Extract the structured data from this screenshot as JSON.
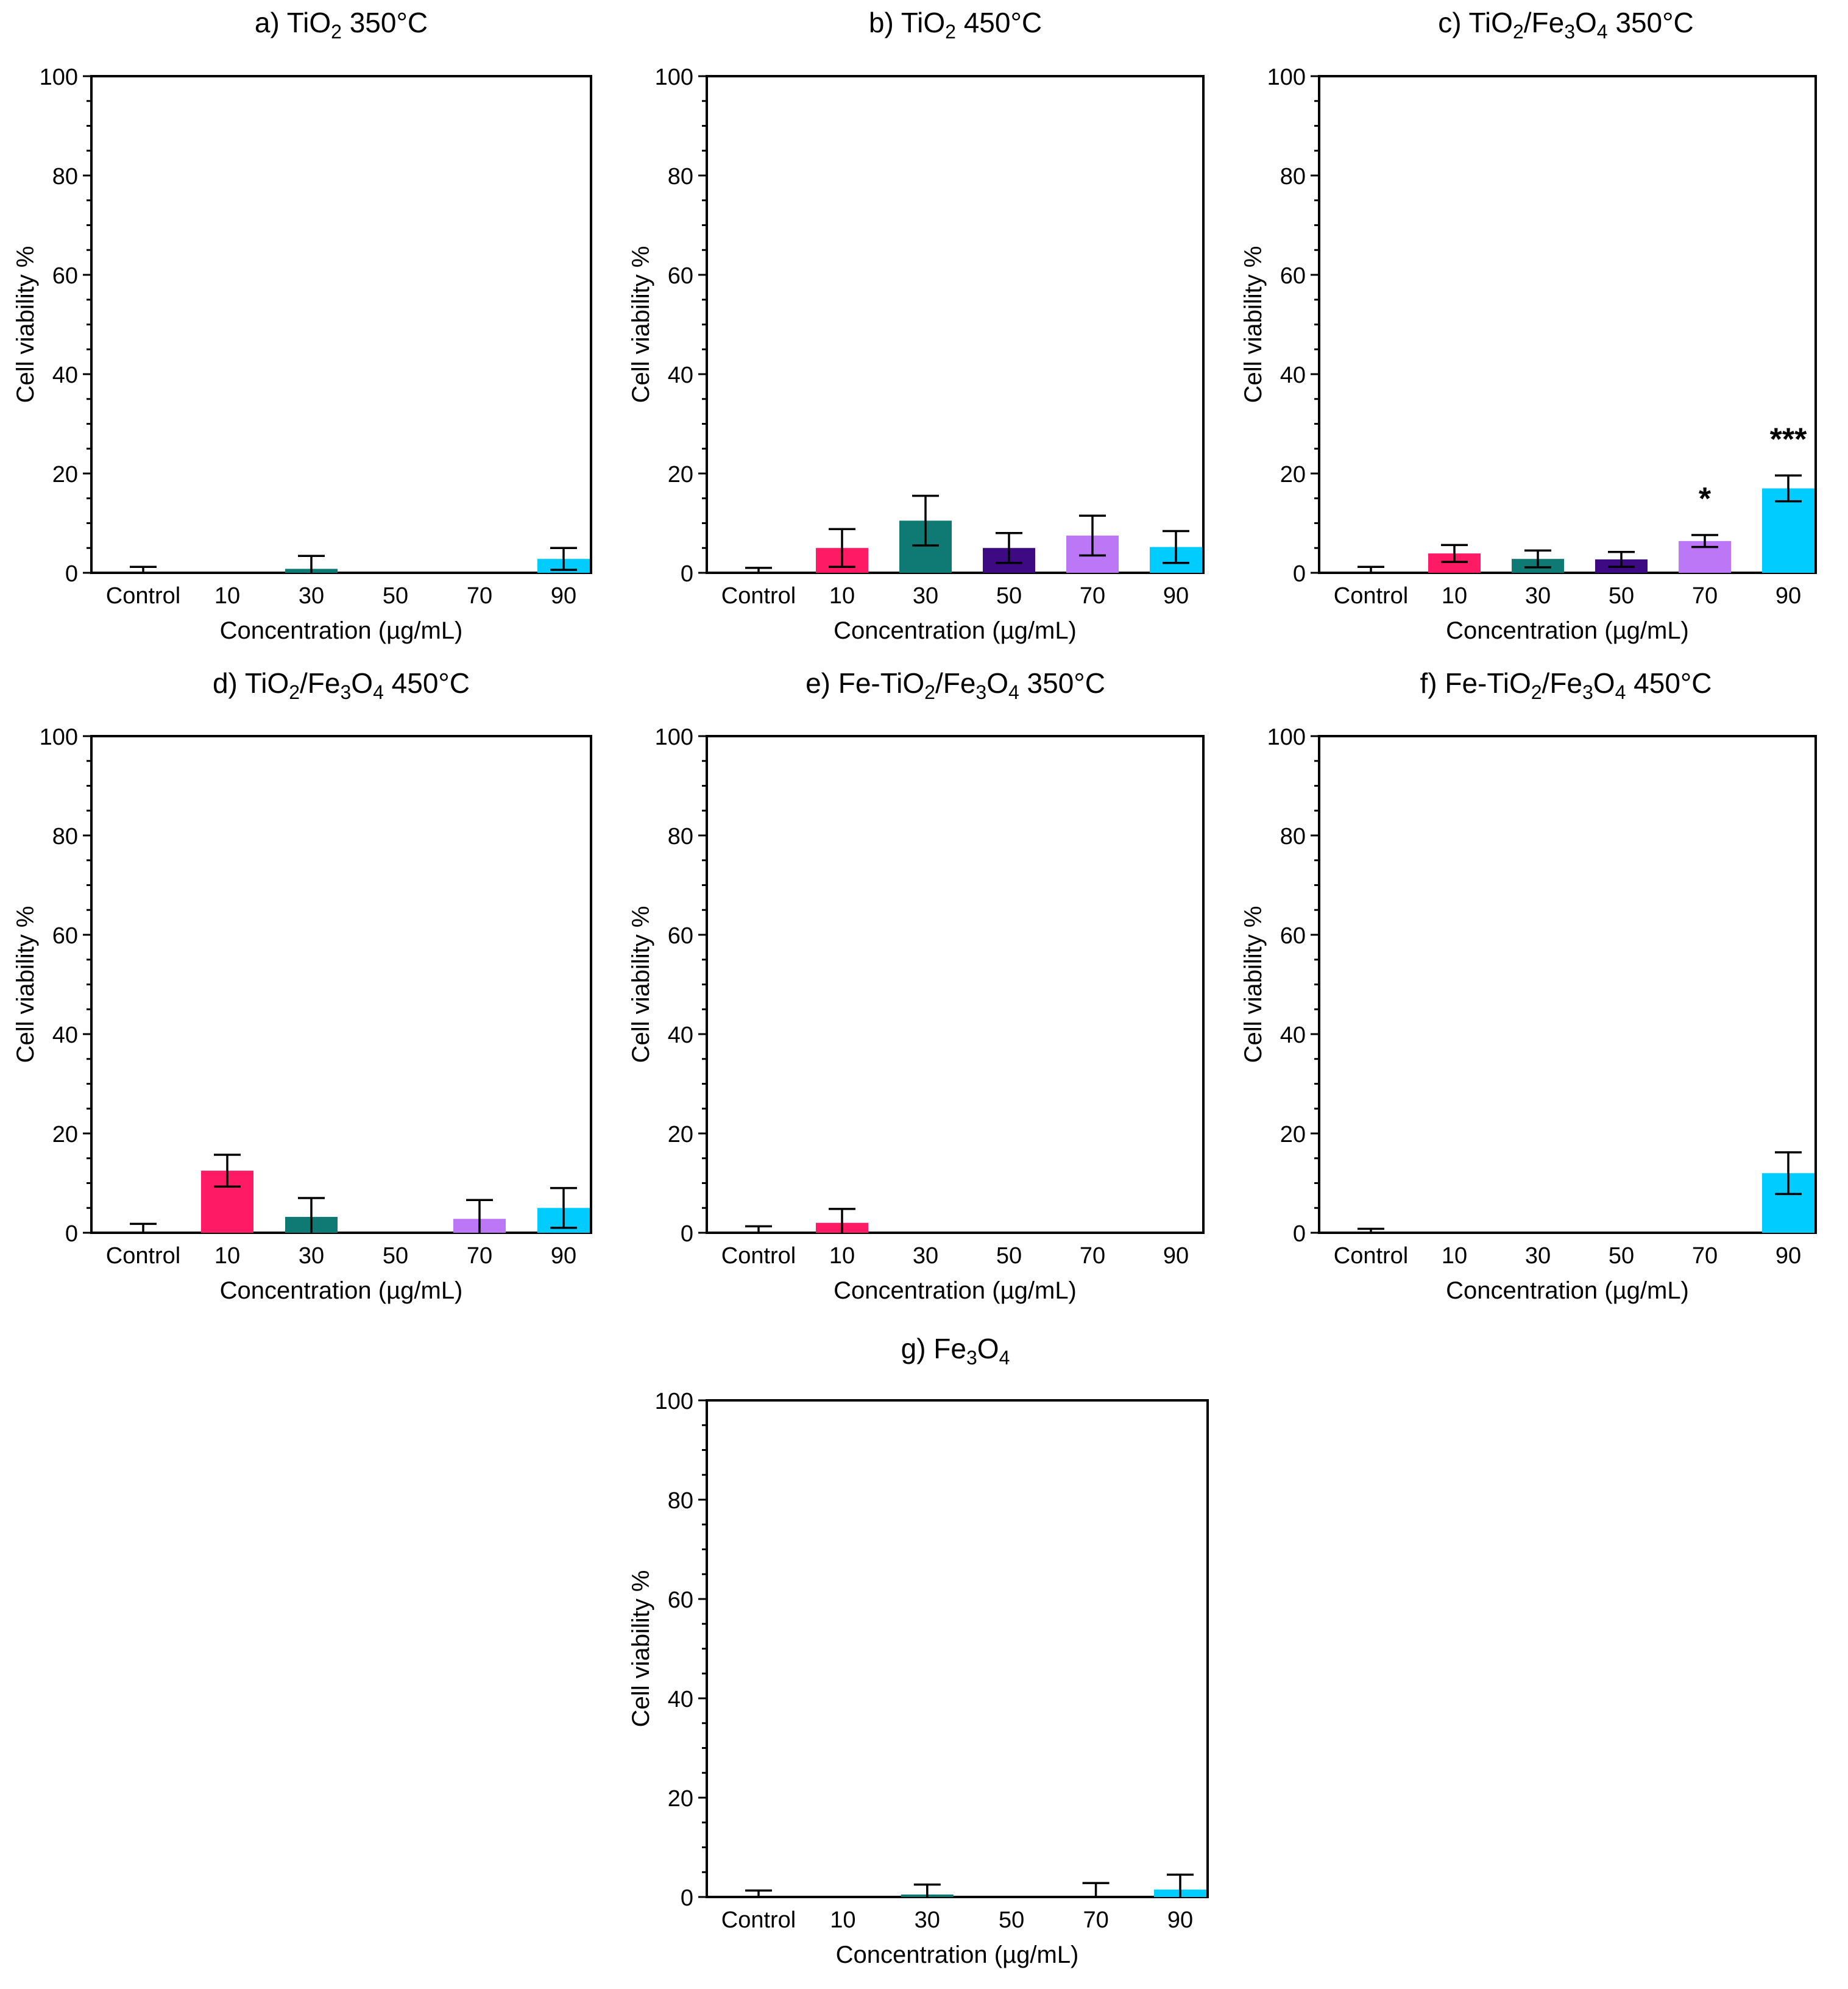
{
  "figure": {
    "background": "#ffffff",
    "axis_color": "#000000"
  },
  "colors": {
    "Control": "#ffffff",
    "10": "#ff1a66",
    "30": "#0e7a73",
    "50": "#3d0a84",
    "70": "#bb77f5",
    "90": "#00ccff"
  },
  "chart_data": [
    {
      "type": "bar",
      "panel": "a",
      "title": {
        "prefix": "a) TiO",
        "sub1": "2",
        "mid": " 350°C",
        "sub2": "",
        "tail": ""
      },
      "categories": [
        "Control",
        "10",
        "30",
        "50",
        "70",
        "90"
      ],
      "values": [
        0,
        0,
        0.8,
        0,
        0,
        2.8
      ],
      "errors": [
        1.2,
        0,
        2.6,
        0,
        0,
        2.2
      ],
      "annotations": [
        "",
        "",
        "",
        "",
        "",
        ""
      ],
      "xlabel": "Concentration (µg/mL)",
      "ylabel": "Cell viability %",
      "ylim": [
        0,
        100
      ],
      "yticks": [
        "0",
        "20",
        "40",
        "60",
        "80",
        "100"
      ]
    },
    {
      "type": "bar",
      "panel": "b",
      "title": {
        "prefix": "b) TiO",
        "sub1": "2",
        "mid": " 450°C",
        "sub2": "",
        "tail": ""
      },
      "categories": [
        "Control",
        "10",
        "30",
        "50",
        "70",
        "90"
      ],
      "values": [
        0,
        5,
        10.5,
        5,
        7.5,
        5.2
      ],
      "errors": [
        1.0,
        3.8,
        5.0,
        3.0,
        4.0,
        3.2
      ],
      "annotations": [
        "",
        "",
        "",
        "",
        "",
        ""
      ],
      "xlabel": "Concentration (µg/mL)",
      "ylabel": "Cell viability %",
      "ylim": [
        0,
        100
      ],
      "yticks": [
        "0",
        "20",
        "40",
        "60",
        "80",
        "100"
      ]
    },
    {
      "type": "bar",
      "panel": "c",
      "title": {
        "prefix": "c) TiO",
        "sub1": "2",
        "mid": "/Fe",
        "sub2": "3",
        "mid2": "O",
        "sub3": "4",
        "tail": " 350°C"
      },
      "categories": [
        "Control",
        "10",
        "30",
        "50",
        "70",
        "90"
      ],
      "values": [
        0,
        3.9,
        2.8,
        2.7,
        6.4,
        17
      ],
      "errors": [
        1.2,
        1.7,
        1.7,
        1.5,
        1.2,
        2.6
      ],
      "annotations": [
        "",
        "",
        "",
        "",
        "*",
        "***"
      ],
      "xlabel": "Concentration (µg/mL)",
      "ylabel": "Cell viability %",
      "ylim": [
        0,
        100
      ],
      "yticks": [
        "0",
        "20",
        "40",
        "60",
        "80",
        "100"
      ]
    },
    {
      "type": "bar",
      "panel": "d",
      "title": {
        "prefix": "d) TiO",
        "sub1": "2",
        "mid": "/Fe",
        "sub2": "3",
        "mid2": "O",
        "sub3": "4",
        "tail": " 450°C"
      },
      "categories": [
        "Control",
        "10",
        "30",
        "50",
        "70",
        "90"
      ],
      "values": [
        0,
        12.5,
        3.2,
        0,
        2.8,
        5
      ],
      "errors": [
        1.8,
        3.2,
        3.8,
        0,
        3.8,
        4.0
      ],
      "annotations": [
        "",
        "",
        "",
        "",
        "",
        ""
      ],
      "xlabel": "Concentration (µg/mL)",
      "ylabel": "Cell viability %",
      "ylim": [
        0,
        100
      ],
      "yticks": [
        "0",
        "20",
        "40",
        "60",
        "80",
        "100"
      ]
    },
    {
      "type": "bar",
      "panel": "e",
      "title": {
        "prefix": "e) Fe-TiO",
        "sub1": "2",
        "mid": "/Fe",
        "sub2": "3",
        "mid2": "O",
        "sub3": "4",
        "tail": " 350°C"
      },
      "categories": [
        "Control",
        "10",
        "30",
        "50",
        "70",
        "90"
      ],
      "values": [
        0,
        2,
        0,
        0,
        0,
        0
      ],
      "errors": [
        1.3,
        2.8,
        0,
        0,
        0,
        0
      ],
      "annotations": [
        "",
        "",
        "",
        "",
        "",
        ""
      ],
      "xlabel": "Concentration (µg/mL)",
      "ylabel": "Cell viability %",
      "ylim": [
        0,
        100
      ],
      "yticks": [
        "0",
        "20",
        "40",
        "60",
        "80",
        "100"
      ]
    },
    {
      "type": "bar",
      "panel": "f",
      "title": {
        "prefix": "f) Fe-TiO",
        "sub1": "2",
        "mid": "/Fe",
        "sub2": "3",
        "mid2": "O",
        "sub3": "4",
        "tail": " 450°C"
      },
      "categories": [
        "Control",
        "10",
        "30",
        "50",
        "70",
        "90"
      ],
      "values": [
        0,
        0,
        0,
        0,
        0,
        12
      ],
      "errors": [
        0.8,
        0,
        0,
        0,
        0,
        4.2
      ],
      "annotations": [
        "",
        "",
        "",
        "",
        "",
        ""
      ],
      "xlabel": "Concentration (µg/mL)",
      "ylabel": "Cell viability %",
      "ylim": [
        0,
        100
      ],
      "yticks": [
        "0",
        "20",
        "40",
        "60",
        "80",
        "100"
      ]
    },
    {
      "type": "bar",
      "panel": "g",
      "title": {
        "prefix": "g) Fe",
        "sub1": "3",
        "mid": "O",
        "sub2": "4",
        "tail": ""
      },
      "categories": [
        "Control",
        "10",
        "30",
        "50",
        "70",
        "90"
      ],
      "values": [
        0,
        0,
        0.5,
        0,
        0,
        1.5
      ],
      "errors": [
        1.3,
        0,
        2.0,
        0,
        2.8,
        3.0
      ],
      "annotations": [
        "",
        "",
        "",
        "",
        "",
        ""
      ],
      "xlabel": "Concentration (µg/mL)",
      "ylabel": "Cell viability %",
      "ylim": [
        0,
        100
      ],
      "yticks": [
        "0",
        "20",
        "40",
        "60",
        "80",
        "100"
      ]
    }
  ]
}
